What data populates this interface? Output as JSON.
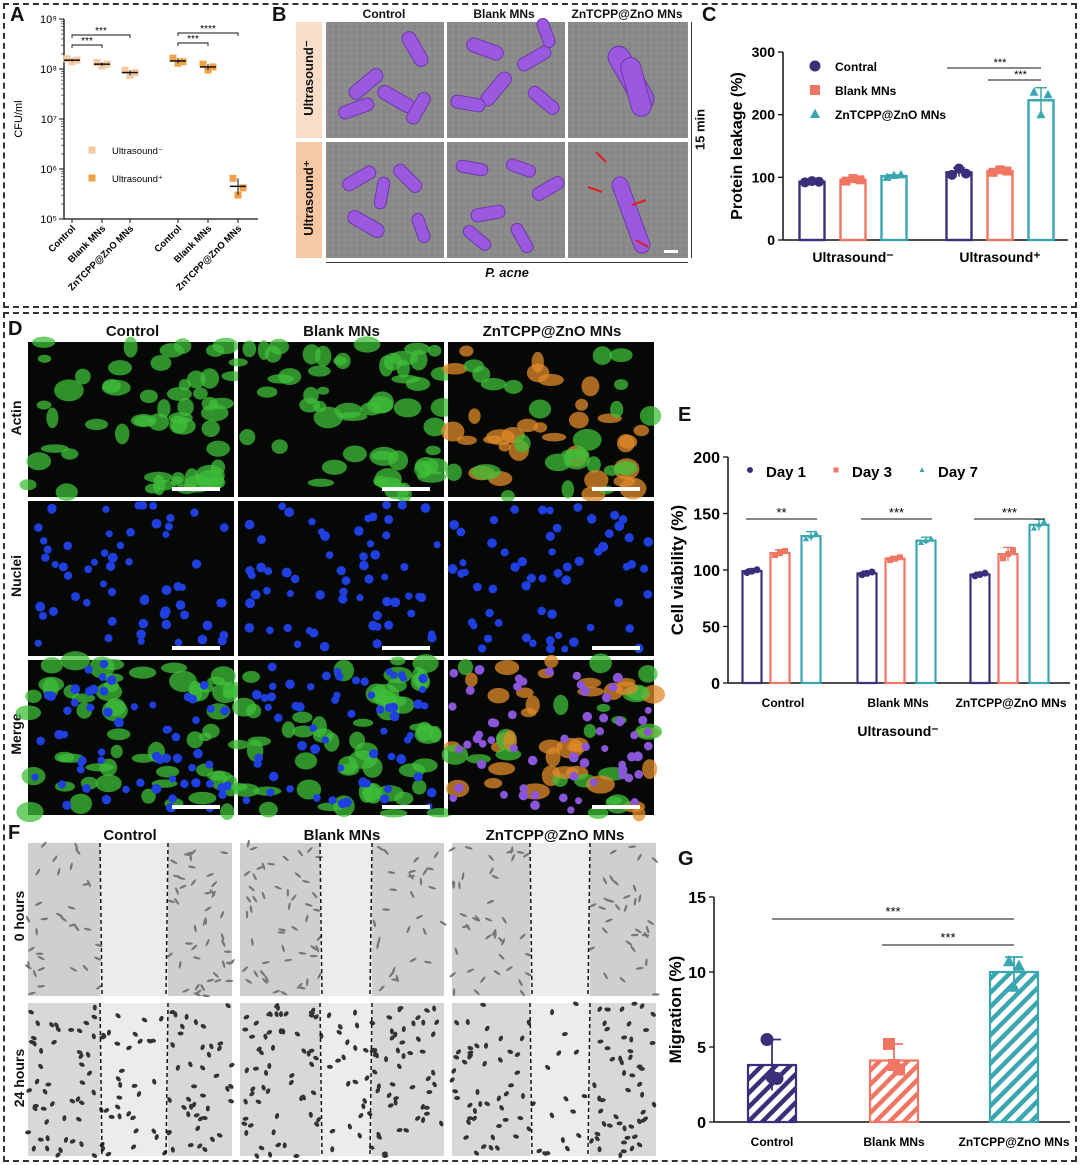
{
  "panels": {
    "A": "A",
    "B": "B",
    "C": "C",
    "D": "D",
    "E": "E",
    "F": "F",
    "G": "G"
  },
  "colors": {
    "light_orange": "#f7c9a1",
    "orange": "#f0a24a",
    "navy": "#3b2f7a",
    "salmon": "#ee7663",
    "teal": "#3aa6b0",
    "purple_bacteria": "#9b59e0",
    "sem_gray": "#8c8c8c",
    "actin_green": "#3fbf3a",
    "nuclei_blue": "#1f3fe0",
    "orange_stain": "#e08a2a"
  },
  "panel_b": {
    "columns": [
      "Control",
      "Blank MNs",
      "ZnTCPP@ZnO MNs"
    ],
    "rows": [
      "Ultrasound⁻",
      "Ultrasound⁺"
    ],
    "side_label": "15 min",
    "bottom_label": "P. acne"
  },
  "panel_d": {
    "columns": [
      "Control",
      "Blank MNs",
      "ZnTCPP@ZnO MNs"
    ],
    "rows": [
      "Actin",
      "Nuclei",
      "Merge"
    ]
  },
  "panel_f": {
    "columns": [
      "Control",
      "Blank MNs",
      "ZnTCPP@ZnO MNs"
    ],
    "rows": [
      "0 hours",
      "24 hours"
    ]
  },
  "chart_data": [
    {
      "id": "A",
      "type": "scatter",
      "ylabel": "CFU/ml",
      "yscale": "log",
      "ylim": [
        100000,
        1000000000
      ],
      "yticks": [
        "10⁵",
        "10⁶",
        "10⁷",
        "10⁸",
        "10⁹"
      ],
      "categories": [
        "Control",
        "Blank MNs",
        "ZnTCPP@ZnO MNs",
        "Control",
        "Blank MNs",
        "ZnTCPP@ZnO MNs"
      ],
      "series": [
        {
          "name": "Ultrasound⁻",
          "color": "#f7c9a1",
          "means": [
            150000000,
            125000000,
            85000000
          ],
          "points": [
            [
              160000000,
              140000000,
              150000000
            ],
            [
              135000000,
              115000000,
              125000000
            ],
            [
              95000000,
              75000000,
              85000000
            ]
          ]
        },
        {
          "name": "Ultrasound⁺",
          "color": "#f0a24a",
          "means": [
            145000000,
            110000000,
            450000
          ],
          "points": [
            [
              165000000,
              130000000,
              140000000
            ],
            [
              125000000,
              95000000,
              110000000
            ],
            [
              650000,
              300000,
              420000
            ]
          ]
        }
      ],
      "significance": [
        {
          "label": "***",
          "from": 0,
          "to": 2
        },
        {
          "label": "***",
          "from": 0,
          "to": 1
        },
        {
          "label": "****",
          "from": 3,
          "to": 5
        },
        {
          "label": "***",
          "from": 3,
          "to": 4
        }
      ]
    },
    {
      "id": "C",
      "type": "bar",
      "ylabel": "Protein leakage (%)",
      "ylim": [
        0,
        300
      ],
      "yticks": [
        0,
        100,
        200,
        300
      ],
      "groups": [
        "Ultrasound⁻",
        "Ultrasound⁺"
      ],
      "series": [
        {
          "name": "Contral",
          "color": "#3b2f7a",
          "marker": "circle",
          "values": [
            93,
            108
          ],
          "err": [
            3,
            7
          ],
          "points": [
            [
              92,
              94,
              93
            ],
            [
              104,
              114,
              106
            ]
          ]
        },
        {
          "name": "Blank MNs",
          "color": "#ee7663",
          "marker": "square",
          "values": [
            96,
            110
          ],
          "err": [
            3,
            4
          ],
          "points": [
            [
              94,
              98,
              96
            ],
            [
              108,
              112,
              110
            ]
          ]
        },
        {
          "name": "ZnTCPP@ZnO MNs",
          "color": "#3aa6b0",
          "marker": "triangle",
          "values": [
            102,
            223
          ],
          "err": [
            2,
            20
          ],
          "points": [
            [
              100,
              103,
              104
            ],
            [
              236,
              200,
              232
            ]
          ]
        }
      ],
      "significance": [
        {
          "label": "***",
          "group": 1,
          "from": 0,
          "to": 2
        },
        {
          "label": "***",
          "group": 1,
          "from": 1,
          "to": 2
        }
      ]
    },
    {
      "id": "E",
      "type": "bar",
      "ylabel": "Cell viability (%)",
      "xlabel": "Ultrasound⁻",
      "ylim": [
        0,
        200
      ],
      "yticks": [
        0,
        50,
        100,
        150,
        200
      ],
      "groups": [
        "Control",
        "Blank MNs",
        "ZnTCPP@ZnO MNs"
      ],
      "series": [
        {
          "name": "Day 1",
          "color": "#3b2f7a",
          "marker": "circle",
          "values": [
            99,
            97,
            96
          ],
          "err": [
            2,
            2,
            2
          ]
        },
        {
          "name": "Day 3",
          "color": "#ee7663",
          "marker": "square",
          "values": [
            115,
            110,
            114
          ],
          "err": [
            3,
            2,
            6
          ]
        },
        {
          "name": "Day 7",
          "color": "#3aa6b0",
          "marker": "triangle",
          "values": [
            130,
            126,
            140
          ],
          "err": [
            4,
            3,
            5
          ]
        }
      ],
      "significance": [
        {
          "label": "**",
          "group": 0
        },
        {
          "label": "***",
          "group": 1
        },
        {
          "label": "***",
          "group": 2
        }
      ]
    },
    {
      "id": "G",
      "type": "bar",
      "ylabel": "Migration (%)",
      "ylim": [
        0,
        15
      ],
      "yticks": [
        0,
        5,
        10,
        15
      ],
      "categories": [
        "Control",
        "Blank MNs",
        "ZnTCPP@ZnO MNs"
      ],
      "series": [
        {
          "colors": [
            "#3b2f7a",
            "#ee7663",
            "#3aa6b0"
          ],
          "markers": [
            "circle",
            "square",
            "triangle"
          ],
          "values": [
            3.8,
            4.1,
            10.0
          ],
          "err": [
            1.7,
            1.1,
            1.0
          ],
          "points": [
            [
              5.5,
              3.0,
              2.9
            ],
            [
              5.2,
              3.8,
              3.5
            ],
            [
              10.7,
              9.0,
              10.4
            ]
          ]
        }
      ],
      "significance": [
        {
          "label": "***",
          "from": 0,
          "to": 2
        },
        {
          "label": "***",
          "from": 1,
          "to": 2
        }
      ]
    }
  ]
}
